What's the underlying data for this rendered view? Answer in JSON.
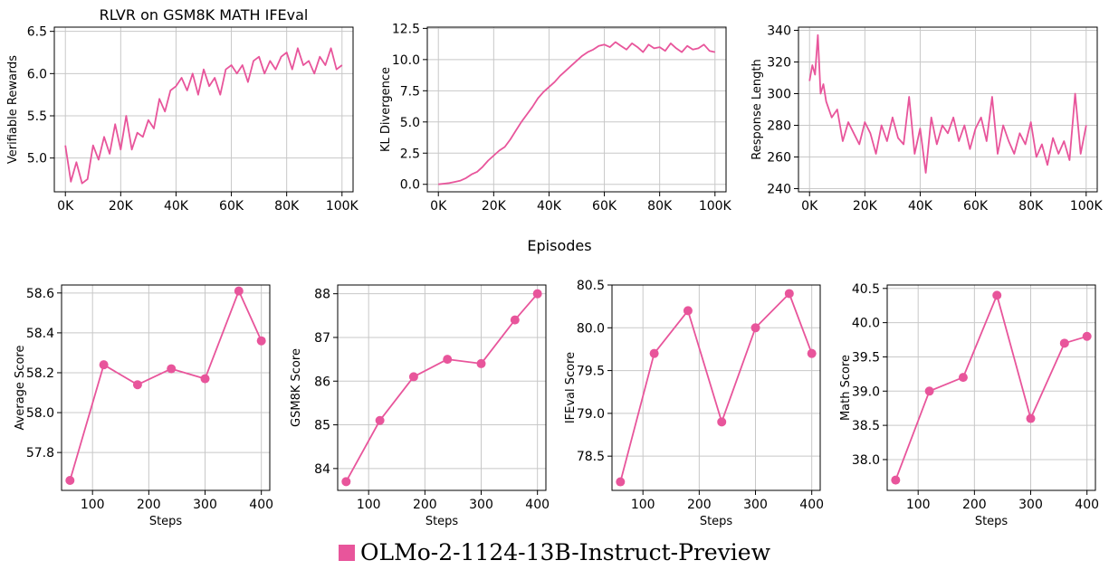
{
  "colors": {
    "series": "#e8559b",
    "grid": "#c8c8c8",
    "axis": "#000000"
  },
  "shared_xlabel": "Episodes",
  "legend": {
    "label": "OLMo-2-1124-13B-Instruct-Preview"
  },
  "chart_data": [
    {
      "type": "line",
      "title": "RLVR on GSM8K MATH IFEval",
      "xlabel": "",
      "ylabel": "Verifiable Rewards",
      "xlim": [
        -4000,
        104000
      ],
      "ylim": [
        4.6,
        6.55
      ],
      "xticks": [
        0,
        20000,
        40000,
        60000,
        80000,
        100000
      ],
      "xtick_labels": [
        "0K",
        "20K",
        "40K",
        "60K",
        "80K",
        "100K"
      ],
      "yticks": [
        5.0,
        5.5,
        6.0,
        6.5
      ],
      "ytick_labels": [
        "5.0",
        "5.5",
        "6.0",
        "6.5"
      ],
      "grid": true,
      "series": [
        {
          "x": [
            0,
            2000,
            4000,
            6000,
            8000,
            10000,
            12000,
            14000,
            16000,
            18000,
            20000,
            22000,
            24000,
            26000,
            28000,
            30000,
            32000,
            34000,
            36000,
            38000,
            40000,
            42000,
            44000,
            46000,
            48000,
            50000,
            52000,
            54000,
            56000,
            58000,
            60000,
            62000,
            64000,
            66000,
            68000,
            70000,
            72000,
            74000,
            76000,
            78000,
            80000,
            82000,
            84000,
            86000,
            88000,
            90000,
            92000,
            94000,
            96000,
            98000,
            100000
          ],
          "y": [
            5.15,
            4.72,
            4.95,
            4.7,
            4.75,
            5.15,
            4.98,
            5.25,
            5.05,
            5.4,
            5.1,
            5.5,
            5.1,
            5.3,
            5.25,
            5.45,
            5.35,
            5.7,
            5.55,
            5.8,
            5.85,
            5.95,
            5.8,
            6.0,
            5.75,
            6.05,
            5.85,
            5.95,
            5.75,
            6.05,
            6.1,
            6.0,
            6.1,
            5.9,
            6.15,
            6.2,
            6.0,
            6.15,
            6.05,
            6.2,
            6.25,
            6.05,
            6.3,
            6.1,
            6.15,
            6.0,
            6.2,
            6.1,
            6.3,
            6.05,
            6.1
          ]
        }
      ]
    },
    {
      "type": "line",
      "title": "",
      "xlabel": "",
      "ylabel": "KL Divergence",
      "xlim": [
        -4000,
        104000
      ],
      "ylim": [
        -0.6,
        12.6
      ],
      "xticks": [
        0,
        20000,
        40000,
        60000,
        80000,
        100000
      ],
      "xtick_labels": [
        "0K",
        "20K",
        "40K",
        "60K",
        "80K",
        "100K"
      ],
      "yticks": [
        0.0,
        2.5,
        5.0,
        7.5,
        10.0,
        12.5
      ],
      "ytick_labels": [
        "0.0",
        "2.5",
        "5.0",
        "7.5",
        "10.0",
        "12.5"
      ],
      "grid": true,
      "series": [
        {
          "x": [
            0,
            2000,
            4000,
            6000,
            8000,
            10000,
            12000,
            14000,
            16000,
            18000,
            20000,
            22000,
            24000,
            26000,
            28000,
            30000,
            32000,
            34000,
            36000,
            38000,
            40000,
            42000,
            44000,
            46000,
            48000,
            50000,
            52000,
            54000,
            56000,
            58000,
            60000,
            62000,
            64000,
            66000,
            68000,
            70000,
            72000,
            74000,
            76000,
            78000,
            80000,
            82000,
            84000,
            86000,
            88000,
            90000,
            92000,
            94000,
            96000,
            98000,
            100000
          ],
          "y": [
            0.0,
            0.05,
            0.1,
            0.2,
            0.3,
            0.5,
            0.8,
            1.0,
            1.4,
            1.9,
            2.3,
            2.7,
            3.0,
            3.6,
            4.3,
            5.0,
            5.6,
            6.2,
            6.9,
            7.4,
            7.8,
            8.2,
            8.7,
            9.1,
            9.5,
            9.9,
            10.3,
            10.6,
            10.8,
            11.1,
            11.2,
            11.0,
            11.4,
            11.1,
            10.8,
            11.3,
            11.0,
            10.6,
            11.2,
            10.9,
            11.0,
            10.7,
            11.3,
            10.9,
            10.6,
            11.1,
            10.8,
            10.9,
            11.2,
            10.7,
            10.6
          ]
        }
      ]
    },
    {
      "type": "line",
      "title": "",
      "xlabel": "",
      "ylabel": "Response Length",
      "xlim": [
        -4000,
        104000
      ],
      "ylim": [
        238,
        342
      ],
      "xticks": [
        0,
        20000,
        40000,
        60000,
        80000,
        100000
      ],
      "xtick_labels": [
        "0K",
        "20K",
        "40K",
        "60K",
        "80K",
        "100K"
      ],
      "yticks": [
        240,
        260,
        280,
        300,
        320,
        340
      ],
      "ytick_labels": [
        "240",
        "260",
        "280",
        "300",
        "320",
        "340"
      ],
      "grid": true,
      "series": [
        {
          "x": [
            0,
            1000,
            2000,
            3000,
            4000,
            5000,
            6000,
            8000,
            10000,
            12000,
            14000,
            16000,
            18000,
            20000,
            22000,
            24000,
            26000,
            28000,
            30000,
            32000,
            34000,
            36000,
            38000,
            40000,
            42000,
            44000,
            46000,
            48000,
            50000,
            52000,
            54000,
            56000,
            58000,
            60000,
            62000,
            64000,
            66000,
            68000,
            70000,
            72000,
            74000,
            76000,
            78000,
            80000,
            82000,
            84000,
            86000,
            88000,
            90000,
            92000,
            94000,
            96000,
            98000,
            100000
          ],
          "y": [
            308,
            318,
            312,
            337,
            300,
            306,
            295,
            285,
            290,
            270,
            282,
            275,
            268,
            282,
            275,
            262,
            280,
            270,
            285,
            272,
            268,
            298,
            262,
            278,
            250,
            285,
            268,
            280,
            275,
            285,
            270,
            280,
            265,
            278,
            285,
            270,
            298,
            262,
            280,
            270,
            262,
            275,
            268,
            282,
            260,
            268,
            255,
            272,
            262,
            270,
            258,
            300,
            262,
            280
          ]
        }
      ]
    },
    {
      "type": "line",
      "title": "",
      "xlabel": "Steps",
      "ylabel": "Average Score",
      "xlim": [
        45,
        415
      ],
      "ylim": [
        57.61,
        58.64
      ],
      "xticks": [
        100,
        200,
        300,
        400
      ],
      "xtick_labels": [
        "100",
        "200",
        "300",
        "400"
      ],
      "yticks": [
        57.8,
        58.0,
        58.2,
        58.4,
        58.6
      ],
      "ytick_labels": [
        "57.8",
        "58.0",
        "58.2",
        "58.4",
        "58.6"
      ],
      "grid": true,
      "markers": true,
      "series": [
        {
          "x": [
            60,
            120,
            180,
            240,
            300,
            360,
            400
          ],
          "y": [
            57.66,
            58.24,
            58.14,
            58.22,
            58.17,
            58.61,
            58.36
          ]
        }
      ]
    },
    {
      "type": "line",
      "title": "",
      "xlabel": "Steps",
      "ylabel": "GSM8K Score",
      "xlim": [
        45,
        415
      ],
      "ylim": [
        83.5,
        88.2
      ],
      "xticks": [
        100,
        200,
        300,
        400
      ],
      "xtick_labels": [
        "100",
        "200",
        "300",
        "400"
      ],
      "yticks": [
        84,
        85,
        86,
        87,
        88
      ],
      "ytick_labels": [
        "84",
        "85",
        "86",
        "87",
        "88"
      ],
      "grid": true,
      "markers": true,
      "series": [
        {
          "x": [
            60,
            120,
            180,
            240,
            300,
            360,
            400
          ],
          "y": [
            83.7,
            85.1,
            86.1,
            86.5,
            86.4,
            87.4,
            88.0
          ]
        }
      ]
    },
    {
      "type": "line",
      "title": "",
      "xlabel": "Steps",
      "ylabel": "IFEval Score",
      "xlim": [
        45,
        415
      ],
      "ylim": [
        78.1,
        80.5
      ],
      "xticks": [
        100,
        200,
        300,
        400
      ],
      "xtick_labels": [
        "100",
        "200",
        "300",
        "400"
      ],
      "yticks": [
        78.5,
        79.0,
        79.5,
        80.0,
        80.5
      ],
      "ytick_labels": [
        "78.5",
        "79.0",
        "79.5",
        "80.0",
        "80.5"
      ],
      "grid": true,
      "markers": true,
      "series": [
        {
          "x": [
            60,
            120,
            180,
            240,
            300,
            360,
            400
          ],
          "y": [
            78.2,
            79.7,
            80.2,
            78.9,
            80.0,
            80.4,
            79.7
          ]
        }
      ]
    },
    {
      "type": "line",
      "title": "",
      "xlabel": "Steps",
      "ylabel": "Math Score",
      "xlim": [
        45,
        415
      ],
      "ylim": [
        37.55,
        40.55
      ],
      "xticks": [
        100,
        200,
        300,
        400
      ],
      "xtick_labels": [
        "100",
        "200",
        "300",
        "400"
      ],
      "yticks": [
        38.0,
        38.5,
        39.0,
        39.5,
        40.0,
        40.5
      ],
      "ytick_labels": [
        "38.0",
        "38.5",
        "39.0",
        "39.5",
        "40.0",
        "40.5"
      ],
      "grid": true,
      "markers": true,
      "series": [
        {
          "x": [
            60,
            120,
            180,
            240,
            300,
            360,
            400
          ],
          "y": [
            37.7,
            39.0,
            39.2,
            40.4,
            38.6,
            39.7,
            39.8
          ]
        }
      ]
    }
  ]
}
